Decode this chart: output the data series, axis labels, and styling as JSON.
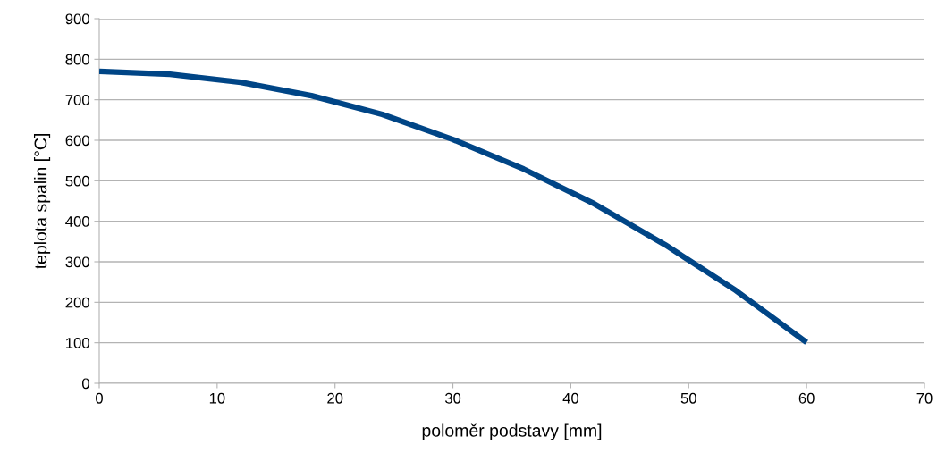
{
  "chart_data": {
    "type": "line",
    "xlabel": "poloměr podstavy [mm]",
    "ylabel": "teplota spalin [°C]",
    "x": [
      0,
      6,
      12,
      18,
      24,
      30,
      36,
      42,
      48,
      54,
      60
    ],
    "series": [
      {
        "color": "#004586",
        "values": [
          770,
          763,
          743,
          710,
          664,
          602,
          529,
          443,
          342,
          229,
          101
        ]
      }
    ],
    "xlim": [
      0,
      70
    ],
    "xticks": [
      0,
      10,
      20,
      30,
      40,
      50,
      60,
      70
    ],
    "ylim": [
      0,
      900
    ],
    "yticks": [
      0,
      100,
      200,
      300,
      400,
      500,
      600,
      700,
      800,
      900
    ],
    "grid": "y",
    "legend": false,
    "marker": "none",
    "line_style": "solid"
  }
}
